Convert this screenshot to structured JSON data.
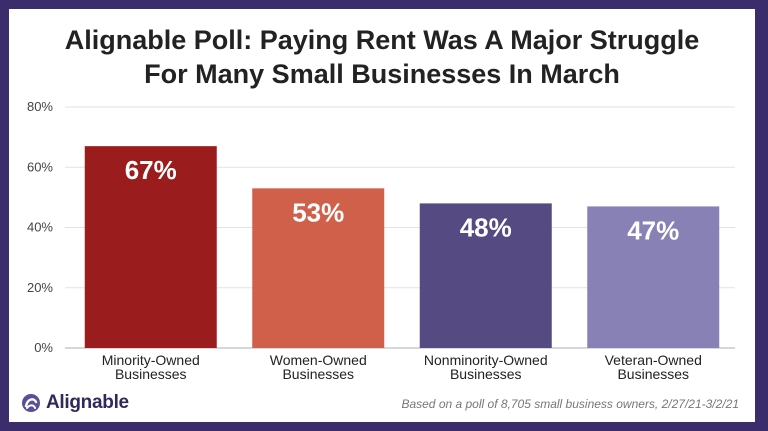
{
  "brand": {
    "name": "Alignable",
    "icon": "alignable-logo-icon"
  },
  "footnote": "Based on a poll of 8,705 small business owners, 2/27/21-3/2/21",
  "colors": {
    "frame": "#3b2d6b",
    "bars": [
      "#9b1c1c",
      "#d0604a",
      "#564a82",
      "#8781b6"
    ]
  },
  "chart_data": {
    "type": "bar",
    "title_lines": [
      "Alignable Poll: Paying Rent Was A Major Struggle",
      "For Many Small Businesses In March"
    ],
    "categories": [
      [
        "Minority-Owned",
        "Businesses"
      ],
      [
        "Women-Owned",
        "Businesses"
      ],
      [
        "Nonminority-Owned",
        "Businesses"
      ],
      [
        "Veteran-Owned",
        "Businesses"
      ]
    ],
    "values": [
      67,
      53,
      48,
      47
    ],
    "value_labels": [
      "67%",
      "53%",
      "48%",
      "47%"
    ],
    "y_ticks": [
      "0%",
      "20%",
      "40%",
      "60%",
      "80%"
    ],
    "ylim": [
      0,
      80
    ],
    "grid": true,
    "xlabel": "",
    "ylabel": ""
  }
}
